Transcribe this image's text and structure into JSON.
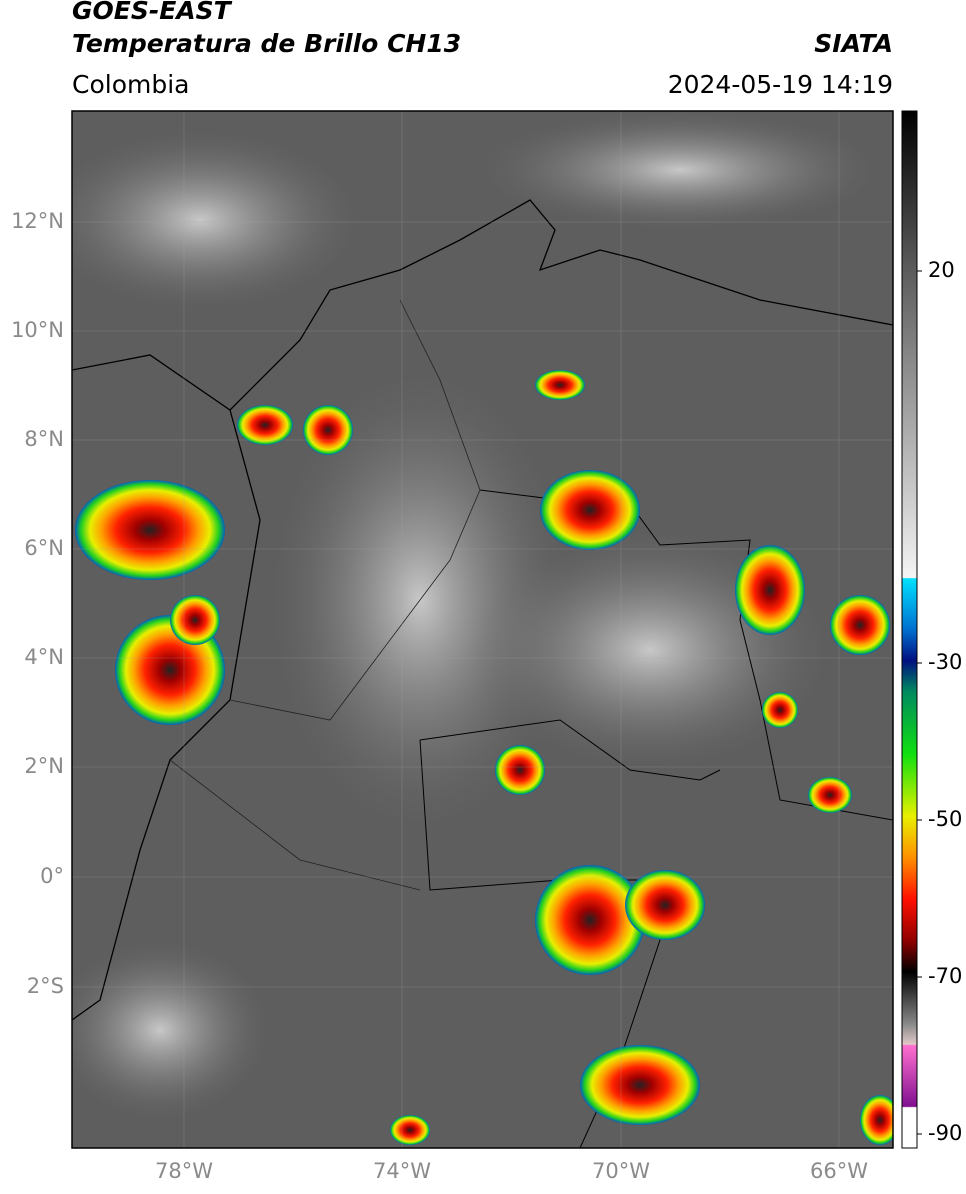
{
  "header": {
    "satellite": "GOES-EAST",
    "product": "Temperatura de Brillo CH13",
    "source": "SIATA",
    "region": "Colombia",
    "datetime": "2024-05-19 14:19"
  },
  "map": {
    "lat_labels": [
      "12°N",
      "10°N",
      "8°N",
      "6°N",
      "4°N",
      "2°N",
      "0°",
      "2°S"
    ],
    "lon_labels": [
      "78°W",
      "74°W",
      "70°W",
      "66°W"
    ]
  },
  "colorbar": {
    "tick_labels": [
      "20",
      "-30",
      "-50",
      "-70",
      "-90"
    ]
  }
}
